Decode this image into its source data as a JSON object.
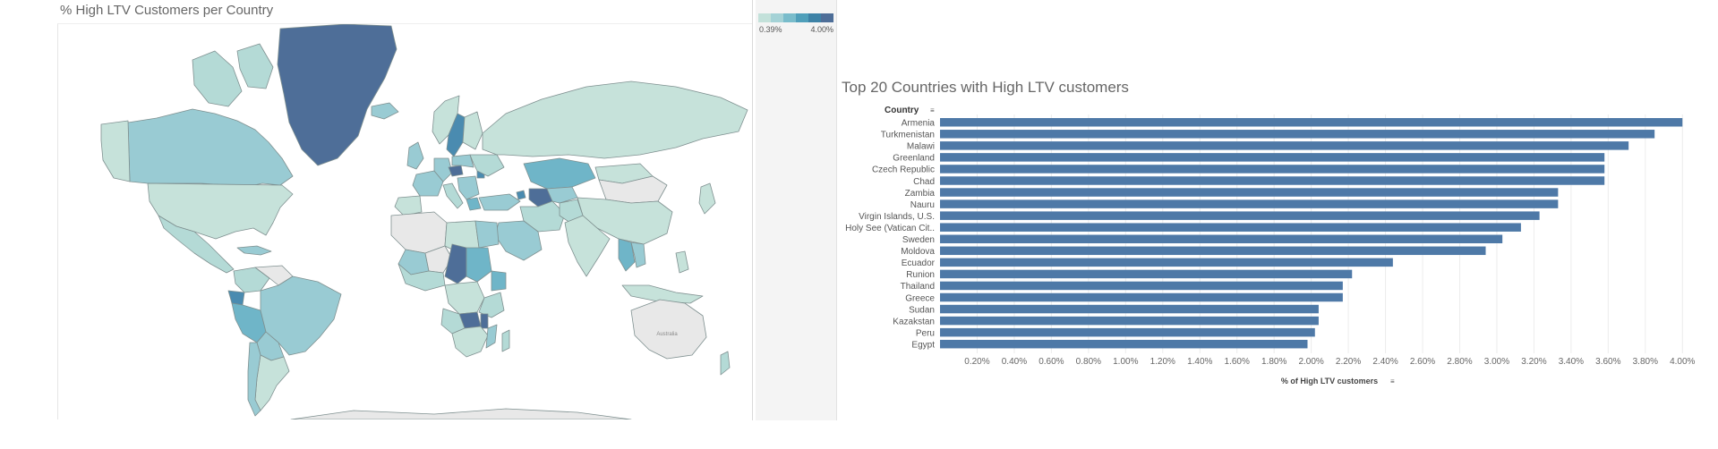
{
  "map": {
    "title": "% High LTV Customers per Country",
    "legend": {
      "min_label": "0.39%",
      "max_label": "4.00%",
      "colors": [
        "#c3e1da",
        "#a4d2d6",
        "#79bccb",
        "#4f9fba",
        "#3d82a6",
        "#4e6e98"
      ]
    },
    "colors": {
      "ocean": "#ffffff",
      "no_data": "#e8e8e8",
      "border": "#7f9090",
      "very_low": "#c6e2da",
      "low": "#b4dad6",
      "mid": "#99cbd3",
      "mid_high": "#6fb5c8",
      "high": "#4a8bb0",
      "max": "#4e6e98"
    },
    "country_label": "Australia"
  },
  "chart_data": {
    "type": "bar",
    "orientation": "horizontal",
    "title": "Top 20 Countries with High LTV customers",
    "ylabel": "Country",
    "xlabel": "% of High LTV customers",
    "bar_color": "#4e79a7",
    "categories": [
      "Armenia",
      "Turkmenistan",
      "Malawi",
      "Greenland",
      "Czech Republic",
      "Chad",
      "Zambia",
      "Nauru",
      "Virgin Islands, U.S.",
      "Holy See (Vatican Cit..",
      "Sweden",
      "Moldova",
      "Ecuador",
      "Runion",
      "Thailand",
      "Greece",
      "Sudan",
      "Kazakstan",
      "Peru",
      "Egypt"
    ],
    "values": [
      4.0,
      3.85,
      3.71,
      3.58,
      3.58,
      3.58,
      3.33,
      3.33,
      3.23,
      3.13,
      3.03,
      2.94,
      2.44,
      2.22,
      2.17,
      2.17,
      2.04,
      2.04,
      2.02,
      1.98
    ],
    "xlim": [
      0,
      4.1
    ],
    "xticks": [
      0.2,
      0.4,
      0.6,
      0.8,
      1.0,
      1.2,
      1.4,
      1.6,
      1.8,
      2.0,
      2.2,
      2.4,
      2.6,
      2.8,
      3.0,
      3.2,
      3.4,
      3.6,
      3.8,
      4.0
    ],
    "xtick_labels": [
      "0.20%",
      "0.40%",
      "0.60%",
      "0.80%",
      "1.00%",
      "1.20%",
      "1.40%",
      "1.60%",
      "1.80%",
      "2.00%",
      "2.20%",
      "2.40%",
      "2.60%",
      "2.80%",
      "3.00%",
      "3.20%",
      "3.40%",
      "3.60%",
      "3.80%",
      "4.00%"
    ],
    "grid": "vertical"
  }
}
